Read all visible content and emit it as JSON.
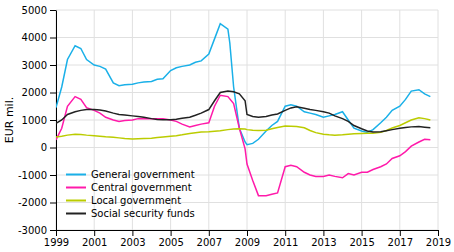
{
  "chart_data": {
    "type": "line",
    "ylabel": "EUR mil.",
    "xlim": [
      1999,
      2019
    ],
    "xticks": [
      1999,
      2001,
      2003,
      2005,
      2007,
      2009,
      2011,
      2013,
      2015,
      2017,
      2019
    ],
    "ylim": [
      -3000,
      5000
    ],
    "yticks": [
      -3000,
      -2000,
      -1000,
      0,
      1000,
      2000,
      3000,
      4000,
      5000
    ],
    "grid": true,
    "legend": "lower-left",
    "series": [
      {
        "name": "General government",
        "color": "#1ab0e8",
        "x": [
          1999.0,
          1999.3,
          1999.6,
          2000.0,
          2000.3,
          2000.6,
          2001.0,
          2001.3,
          2001.6,
          2002.0,
          2002.3,
          2002.6,
          2003.0,
          2003.3,
          2003.6,
          2004.0,
          2004.3,
          2004.6,
          2005.0,
          2005.3,
          2005.6,
          2006.0,
          2006.3,
          2006.6,
          2007.0,
          2007.3,
          2007.6,
          2008.0,
          2008.1,
          2008.3,
          2008.6,
          2008.9,
          2009.0,
          2009.3,
          2009.6,
          2010.0,
          2010.3,
          2010.6,
          2011.0,
          2011.3,
          2011.6,
          2012.0,
          2012.3,
          2012.6,
          2013.0,
          2013.3,
          2013.6,
          2014.0,
          2014.3,
          2014.6,
          2015.0,
          2015.3,
          2015.6,
          2016.0,
          2016.3,
          2016.6,
          2017.0,
          2017.3,
          2017.6,
          2018.0,
          2018.3,
          2018.6
        ],
        "values": [
          1450,
          2200,
          3200,
          3700,
          3600,
          3200,
          3000,
          2950,
          2850,
          2350,
          2250,
          2280,
          2300,
          2350,
          2380,
          2400,
          2480,
          2500,
          2800,
          2900,
          2950,
          3000,
          3100,
          3150,
          3400,
          3950,
          4500,
          4300,
          3800,
          2200,
          700,
          200,
          100,
          150,
          300,
          600,
          800,
          950,
          1500,
          1550,
          1500,
          1300,
          1250,
          1200,
          1100,
          1150,
          1200,
          1300,
          1000,
          700,
          600,
          550,
          650,
          900,
          1100,
          1350,
          1500,
          1750,
          2050,
          2100,
          1950,
          1850
        ]
      },
      {
        "name": "Central government",
        "color": "#ff1aaa",
        "x": [
          1999.0,
          1999.3,
          1999.6,
          2000.0,
          2000.3,
          2000.6,
          2001.0,
          2001.3,
          2001.6,
          2002.0,
          2002.3,
          2002.6,
          2003.0,
          2003.3,
          2003.6,
          2004.0,
          2004.3,
          2004.6,
          2005.0,
          2005.3,
          2005.6,
          2006.0,
          2006.3,
          2006.6,
          2007.0,
          2007.3,
          2007.6,
          2008.0,
          2008.3,
          2008.6,
          2008.9,
          2009.0,
          2009.3,
          2009.6,
          2010.0,
          2010.3,
          2010.6,
          2011.0,
          2011.3,
          2011.6,
          2012.0,
          2012.3,
          2012.6,
          2013.0,
          2013.3,
          2013.6,
          2014.0,
          2014.3,
          2014.6,
          2015.0,
          2015.3,
          2015.6,
          2016.0,
          2016.3,
          2016.6,
          2017.0,
          2017.3,
          2017.6,
          2018.0,
          2018.3,
          2018.6
        ],
        "values": [
          280,
          700,
          1500,
          1850,
          1750,
          1450,
          1350,
          1250,
          1100,
          1000,
          950,
          980,
          1000,
          1050,
          1050,
          1050,
          1050,
          1050,
          1000,
          950,
          850,
          750,
          800,
          850,
          900,
          1500,
          1900,
          1850,
          1600,
          700,
          -50,
          -600,
          -1200,
          -1750,
          -1750,
          -1700,
          -1650,
          -700,
          -650,
          -700,
          -900,
          -1000,
          -1050,
          -1050,
          -1000,
          -1050,
          -1100,
          -950,
          -1000,
          -900,
          -900,
          -800,
          -700,
          -600,
          -400,
          -300,
          -150,
          50,
          200,
          300,
          280
        ]
      },
      {
        "name": "Local government",
        "color": "#bbcc00",
        "x": [
          1999.0,
          1999.3,
          1999.6,
          2000.0,
          2000.3,
          2000.6,
          2001.0,
          2001.3,
          2001.6,
          2002.0,
          2002.3,
          2002.6,
          2003.0,
          2003.3,
          2003.6,
          2004.0,
          2004.3,
          2004.6,
          2005.0,
          2005.3,
          2005.6,
          2006.0,
          2006.3,
          2006.6,
          2007.0,
          2007.3,
          2007.6,
          2008.0,
          2008.3,
          2008.6,
          2008.9,
          2009.0,
          2009.3,
          2009.6,
          2010.0,
          2010.3,
          2010.6,
          2011.0,
          2011.3,
          2011.6,
          2012.0,
          2012.3,
          2012.6,
          2013.0,
          2013.3,
          2013.6,
          2014.0,
          2014.3,
          2014.6,
          2015.0,
          2015.3,
          2015.6,
          2016.0,
          2016.3,
          2016.6,
          2017.0,
          2017.3,
          2017.6,
          2018.0,
          2018.3,
          2018.6
        ],
        "values": [
          380,
          410,
          450,
          480,
          470,
          450,
          430,
          410,
          390,
          370,
          350,
          330,
          310,
          320,
          330,
          340,
          360,
          380,
          410,
          430,
          460,
          510,
          540,
          560,
          570,
          590,
          610,
          650,
          670,
          680,
          670,
          650,
          630,
          620,
          630,
          680,
          730,
          780,
          770,
          760,
          720,
          620,
          540,
          480,
          460,
          450,
          460,
          480,
          500,
          510,
          520,
          520,
          550,
          620,
          710,
          800,
          900,
          1000,
          1080,
          1050,
          1000
        ]
      },
      {
        "name": "Social security funds",
        "color": "#222222",
        "x": [
          1999.0,
          1999.3,
          1999.6,
          2000.0,
          2000.3,
          2000.6,
          2001.0,
          2001.3,
          2001.6,
          2002.0,
          2002.3,
          2002.6,
          2003.0,
          2003.3,
          2003.6,
          2004.0,
          2004.3,
          2004.6,
          2005.0,
          2005.3,
          2005.6,
          2006.0,
          2006.3,
          2006.6,
          2007.0,
          2007.3,
          2007.6,
          2008.0,
          2008.3,
          2008.6,
          2008.9,
          2009.0,
          2009.3,
          2009.6,
          2010.0,
          2010.3,
          2010.6,
          2011.0,
          2011.3,
          2011.6,
          2012.0,
          2012.3,
          2012.6,
          2013.0,
          2013.3,
          2013.6,
          2014.0,
          2014.3,
          2014.6,
          2015.0,
          2015.3,
          2015.6,
          2016.0,
          2016.3,
          2016.6,
          2017.0,
          2017.3,
          2017.6,
          2018.0,
          2018.3,
          2018.6
        ],
        "values": [
          880,
          1000,
          1200,
          1300,
          1350,
          1380,
          1380,
          1360,
          1330,
          1250,
          1200,
          1180,
          1150,
          1130,
          1100,
          1050,
          1020,
          1010,
          1010,
          1030,
          1060,
          1100,
          1170,
          1250,
          1380,
          1700,
          2000,
          2050,
          2030,
          1950,
          1700,
          1200,
          1130,
          1100,
          1130,
          1180,
          1220,
          1350,
          1440,
          1480,
          1430,
          1380,
          1350,
          1300,
          1250,
          1150,
          1050,
          950,
          800,
          680,
          600,
          560,
          570,
          610,
          650,
          700,
          730,
          750,
          760,
          740,
          720
        ]
      }
    ]
  }
}
